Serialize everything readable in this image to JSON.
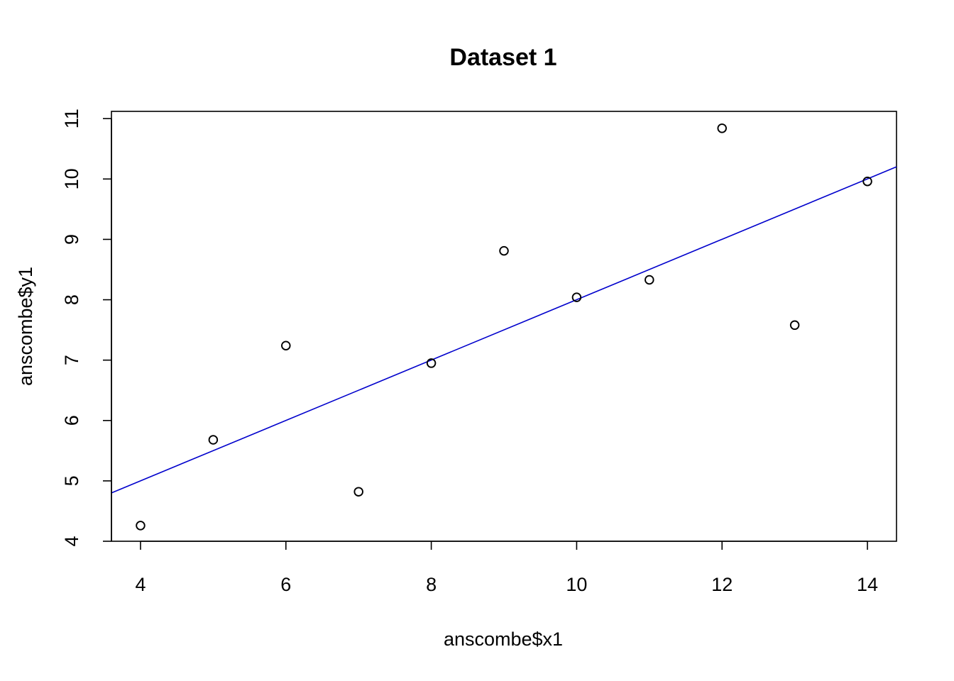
{
  "chart_data": {
    "type": "scatter",
    "title": "Dataset 1",
    "xlabel": "anscombe$x1",
    "ylabel": "anscombe$y1",
    "xlim": [
      3.6,
      14.4
    ],
    "ylim": [
      4.0,
      11.12
    ],
    "x_ticks": [
      4,
      6,
      8,
      10,
      12,
      14
    ],
    "y_ticks": [
      4,
      5,
      6,
      7,
      8,
      9,
      10,
      11
    ],
    "grid": false,
    "series": [
      {
        "x": [
          10,
          8,
          13,
          9,
          11,
          14,
          6,
          4,
          12,
          7,
          5
        ],
        "y": [
          8.04,
          6.95,
          7.58,
          8.81,
          8.33,
          9.96,
          7.24,
          4.26,
          10.84,
          4.82,
          5.68
        ],
        "marker": "open-circle",
        "color": "#000000"
      }
    ],
    "fit_line": {
      "type": "linear-regression",
      "intercept": 3.0001,
      "slope": 0.5001,
      "color": "#0000cc"
    }
  }
}
